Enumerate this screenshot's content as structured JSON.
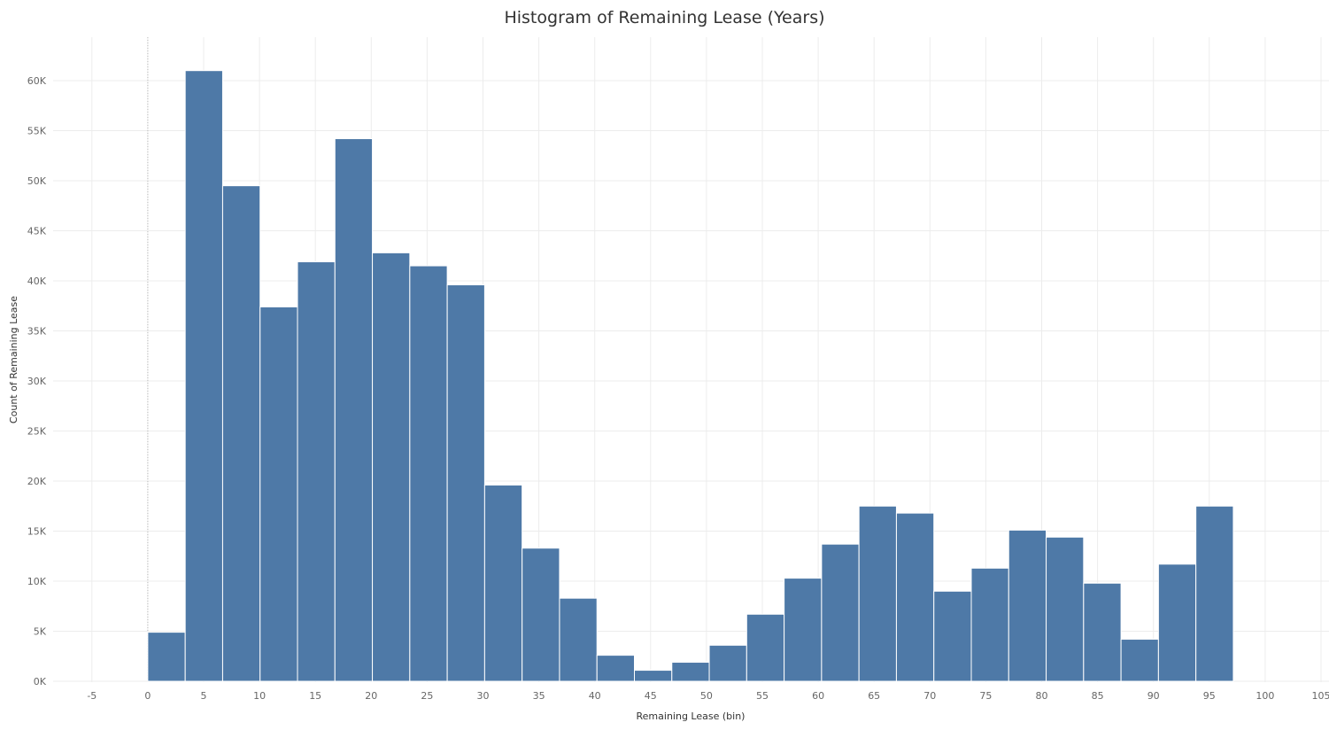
{
  "chart_data": {
    "type": "bar",
    "title": "Histogram of Remaining Lease (Years)",
    "xlabel": "Remaining Lease (bin)",
    "ylabel": "Count of Remaining Lease",
    "bin_width": 3.35,
    "bin_starts": [
      0,
      3.35,
      6.7,
      10.05,
      13.4,
      16.75,
      20.1,
      23.45,
      26.8,
      30.15,
      33.5,
      36.85,
      40.2,
      43.55,
      46.9,
      50.25,
      53.6,
      56.95,
      60.3,
      63.65,
      67.0,
      70.35,
      73.7,
      77.05,
      80.4,
      83.75,
      87.1,
      90.45,
      93.8
    ],
    "values": [
      4900,
      61000,
      49500,
      37400,
      41900,
      54200,
      42800,
      41500,
      39600,
      19600,
      13300,
      8300,
      2600,
      1100,
      1900,
      3600,
      6700,
      10300,
      13700,
      17500,
      16800,
      9000,
      11300,
      15100,
      14400,
      9800,
      4200,
      11700,
      17500
    ],
    "xlim": [
      -10,
      105
    ],
    "ylim": [
      0,
      64000
    ],
    "xticks": [
      -5,
      0,
      5,
      10,
      15,
      20,
      25,
      30,
      35,
      40,
      45,
      50,
      55,
      60,
      65,
      70,
      75,
      80,
      85,
      90,
      95,
      100,
      105
    ],
    "yticks": [
      0,
      5000,
      10000,
      15000,
      20000,
      25000,
      30000,
      35000,
      40000,
      45000,
      50000,
      55000,
      60000
    ],
    "ytick_labels": [
      "0K",
      "5K",
      "10K",
      "15K",
      "20K",
      "25K",
      "30K",
      "35K",
      "40K",
      "45K",
      "50K",
      "55K",
      "60K"
    ],
    "grid": true,
    "bar_color": "#4e79a7"
  }
}
